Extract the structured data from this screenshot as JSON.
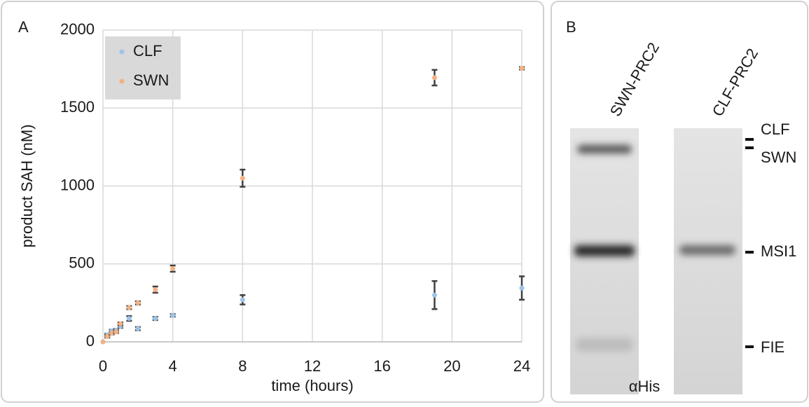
{
  "panel_labels": [
    "A",
    "B"
  ],
  "chart_data": {
    "type": "scatter",
    "xlabel": "time (hours)",
    "ylabel": "product SAH (nM)",
    "x": [
      0,
      0.25,
      0.5,
      0.75,
      1,
      1.5,
      2,
      3,
      4,
      8,
      19,
      24
    ],
    "series": [
      {
        "name": "CLF",
        "color": "#9dc3e6",
        "values": [
          0,
          45,
          70,
          75,
          100,
          150,
          85,
          150,
          170,
          270,
          300,
          345
        ],
        "errors": [
          0,
          8,
          8,
          8,
          10,
          15,
          10,
          10,
          8,
          30,
          90,
          75
        ]
      },
      {
        "name": "SWN",
        "color": "#f4b183",
        "values": [
          0,
          35,
          55,
          65,
          115,
          220,
          250,
          335,
          470,
          1050,
          1695,
          1755
        ],
        "errors": [
          0,
          8,
          8,
          8,
          10,
          10,
          10,
          20,
          20,
          55,
          50,
          8
        ]
      }
    ],
    "error_color": "#404040",
    "xlim": [
      0,
      24
    ],
    "xticks": [
      0,
      4,
      8,
      12,
      16,
      20,
      24
    ],
    "ylim": [
      0,
      2000
    ],
    "yticks": [
      0,
      500,
      1000,
      1500,
      2000
    ],
    "grid": true,
    "legend": "upper left"
  },
  "blot": {
    "lanes": [
      "SWN-PRC2",
      "CLF-PRC2"
    ],
    "bands": [
      "CLF",
      "SWN",
      "MSI1",
      "FIE"
    ],
    "antibody": "αHis"
  }
}
